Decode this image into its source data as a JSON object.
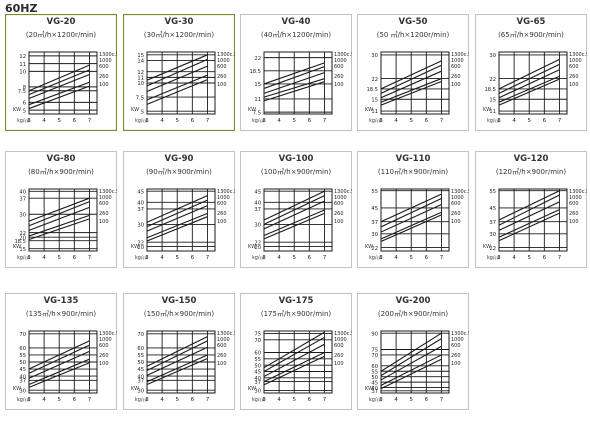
{
  "heading": "60HZ",
  "colors": {
    "panel_border_highlight": "#7a8a2e",
    "panel_border": "#c2c2c2",
    "ink": "#1a1a1a"
  },
  "chart_data": [
    {
      "type": "line",
      "title": "VG-20",
      "subtitle": "(20㎥/h×1200r/min)",
      "xlabel": "kg/㎠",
      "ylabel": "KW",
      "x": [
        3,
        4,
        5,
        6,
        7
      ],
      "xlim": [
        3,
        7.5
      ],
      "yticks": [
        5,
        6,
        7.5,
        8,
        10,
        11,
        12
      ],
      "ylim": [
        4.5,
        12.5
      ],
      "highlight": true,
      "series": [
        {
          "name": "1300c.St",
          "y0": 7.5,
          "y1": 10.8
        },
        {
          "name": "1000",
          "y0": 7.0,
          "y1": 10.2
        },
        {
          "name": "600",
          "y0": 6.5,
          "y1": 9.6
        },
        {
          "name": "260",
          "y0": 5.7,
          "y1": 8.6
        },
        {
          "name": "100",
          "y0": 5.2,
          "y1": 8.1
        }
      ]
    },
    {
      "type": "line",
      "title": "VG-30",
      "subtitle": "(30㎥/h×1200r/min)",
      "xlabel": "kg/㎠",
      "ylabel": "KW",
      "x": [
        3,
        4,
        5,
        6,
        7
      ],
      "xlim": [
        3,
        7.5
      ],
      "yticks": [
        5,
        7.5,
        10,
        11,
        12,
        14,
        15
      ],
      "ylim": [
        4.5,
        15.5
      ],
      "highlight": true,
      "series": [
        {
          "name": "1300c.St",
          "y0": 10.5,
          "y1": 15.0
        },
        {
          "name": "1000",
          "y0": 9.5,
          "y1": 14.2
        },
        {
          "name": "600",
          "y0": 8.5,
          "y1": 13.0
        },
        {
          "name": "260",
          "y0": 7.0,
          "y1": 11.4
        },
        {
          "name": "100",
          "y0": 6.2,
          "y1": 10.6
        }
      ]
    },
    {
      "type": "line",
      "title": "VG-40",
      "subtitle": "(40㎥/h×1200r/min)",
      "xlabel": "kg/㎠",
      "ylabel": "KW",
      "x": [
        3,
        4,
        5,
        6,
        7
      ],
      "xlim": [
        3,
        7.5
      ],
      "yticks": [
        7.5,
        11,
        15,
        18.5,
        22
      ],
      "ylim": [
        7,
        23.5
      ],
      "highlight": false,
      "series": [
        {
          "name": "1300c.St",
          "y0": 15.0,
          "y1": 20.6
        },
        {
          "name": "1000",
          "y0": 13.8,
          "y1": 19.6
        },
        {
          "name": "600",
          "y0": 12.5,
          "y1": 18.0
        },
        {
          "name": "260",
          "y0": 11.5,
          "y1": 16.4
        },
        {
          "name": "100",
          "y0": 10.5,
          "y1": 15.6
        }
      ]
    },
    {
      "type": "line",
      "title": "VG-50",
      "subtitle": "(50 ㎥/h×1200r/min)",
      "xlabel": "kg/㎠",
      "ylabel": "KW",
      "x": [
        3,
        4,
        5,
        6,
        7
      ],
      "xlim": [
        3,
        7.5
      ],
      "yticks": [
        11,
        15,
        18.5,
        22,
        30
      ],
      "ylim": [
        10,
        31
      ],
      "highlight": false,
      "series": [
        {
          "name": "1300c.St",
          "y0": 18.5,
          "y1": 28.0
        },
        {
          "name": "1000",
          "y0": 17.0,
          "y1": 26.5
        },
        {
          "name": "600",
          "y0": 15.5,
          "y1": 24.5
        },
        {
          "name": "260",
          "y0": 14.0,
          "y1": 22.0
        },
        {
          "name": "100",
          "y0": 13.0,
          "y1": 21.0
        }
      ]
    },
    {
      "type": "line",
      "title": "VG-65",
      "subtitle": "(65㎥/h×900r/min)",
      "xlabel": "kg/㎠",
      "ylabel": "KW",
      "x": [
        3,
        4,
        5,
        6,
        7
      ],
      "xlim": [
        3,
        7.5
      ],
      "yticks": [
        11,
        15,
        18.5,
        22,
        30
      ],
      "ylim": [
        10,
        31
      ],
      "highlight": false,
      "series": [
        {
          "name": "1300c.St",
          "y0": 18.5,
          "y1": 28.5
        },
        {
          "name": "1000",
          "y0": 17.0,
          "y1": 26.8
        },
        {
          "name": "600",
          "y0": 15.5,
          "y1": 25.0
        },
        {
          "name": "260",
          "y0": 14.0,
          "y1": 22.8
        },
        {
          "name": "100",
          "y0": 13.0,
          "y1": 21.8
        }
      ]
    },
    {
      "type": "line",
      "title": "VG-80",
      "subtitle": "(80㎥/h×900r/min)",
      "xlabel": "kg/㎠",
      "ylabel": "KW",
      "x": [
        3,
        4,
        5,
        6,
        7
      ],
      "xlim": [
        3,
        7.5
      ],
      "yticks": [
        15,
        18.5,
        20,
        22,
        30,
        37,
        40
      ],
      "ylim": [
        14,
        41
      ],
      "highlight": false,
      "series": [
        {
          "name": "1300c.St",
          "y0": 27.0,
          "y1": 37.0
        },
        {
          "name": "1000",
          "y0": 25.0,
          "y1": 35.5
        },
        {
          "name": "600",
          "y0": 23.0,
          "y1": 33.0
        },
        {
          "name": "260",
          "y0": 20.5,
          "y1": 29.5
        },
        {
          "name": "100",
          "y0": 19.0,
          "y1": 28.0
        }
      ]
    },
    {
      "type": "line",
      "title": "VG-90",
      "subtitle": "(90㎥/h×900r/min)",
      "xlabel": "kg/㎠",
      "ylabel": "KW",
      "x": [
        3,
        4,
        5,
        6,
        7
      ],
      "xlim": [
        3,
        7.5
      ],
      "yticks": [
        20,
        22,
        30,
        37,
        40,
        45
      ],
      "ylim": [
        18,
        46
      ],
      "highlight": false,
      "series": [
        {
          "name": "1300c.St",
          "y0": 31.0,
          "y1": 43.0
        },
        {
          "name": "1000",
          "y0": 29.0,
          "y1": 41.0
        },
        {
          "name": "600",
          "y0": 27.0,
          "y1": 38.5
        },
        {
          "name": "260",
          "y0": 24.0,
          "y1": 35.0
        },
        {
          "name": "100",
          "y0": 22.5,
          "y1": 33.5
        }
      ]
    },
    {
      "type": "line",
      "title": "VG-100",
      "subtitle": "(100㎥/h×900r/min)",
      "xlabel": "kg/㎠",
      "ylabel": "KW",
      "x": [
        3,
        4,
        5,
        6,
        7
      ],
      "xlim": [
        3,
        7.5
      ],
      "yticks": [
        20,
        22,
        30,
        37,
        40,
        45
      ],
      "ylim": [
        18,
        46
      ],
      "highlight": false,
      "series": [
        {
          "name": "1300c.St",
          "y0": 32.0,
          "y1": 45.0
        },
        {
          "name": "1000",
          "y0": 30.0,
          "y1": 43.0
        },
        {
          "name": "600",
          "y0": 28.0,
          "y1": 40.5
        },
        {
          "name": "260",
          "y0": 25.0,
          "y1": 36.5
        },
        {
          "name": "100",
          "y0": 23.5,
          "y1": 35.0
        }
      ]
    },
    {
      "type": "line",
      "title": "VG-110",
      "subtitle": "(110㎥/h×900r/min)",
      "xlabel": "kg/㎠",
      "ylabel": "KW",
      "x": [
        3,
        4,
        5,
        6,
        7
      ],
      "xlim": [
        3,
        7.5
      ],
      "yticks": [
        22,
        30,
        37,
        45,
        55
      ],
      "ylim": [
        20,
        56
      ],
      "highlight": false,
      "series": [
        {
          "name": "1300c.St",
          "y0": 37.0,
          "y1": 53.0
        },
        {
          "name": "1000",
          "y0": 34.0,
          "y1": 50.5
        },
        {
          "name": "600",
          "y0": 31.0,
          "y1": 47.0
        },
        {
          "name": "260",
          "y0": 27.0,
          "y1": 42.5
        },
        {
          "name": "100",
          "y0": 25.5,
          "y1": 41.0
        }
      ]
    },
    {
      "type": "line",
      "title": "VG-120",
      "subtitle": "(120㎥/h×900r/min)",
      "xlabel": "kg/㎠",
      "ylabel": "KW",
      "x": [
        3,
        4,
        5,
        6,
        7
      ],
      "xlim": [
        3,
        7.5
      ],
      "yticks": [
        22,
        30,
        37,
        45,
        55
      ],
      "ylim": [
        20,
        56
      ],
      "highlight": false,
      "series": [
        {
          "name": "1300c.St",
          "y0": 38.0,
          "y1": 55.0
        },
        {
          "name": "1000",
          "y0": 35.0,
          "y1": 52.5
        },
        {
          "name": "600",
          "y0": 32.0,
          "y1": 48.5
        },
        {
          "name": "260",
          "y0": 28.0,
          "y1": 44.0
        },
        {
          "name": "100",
          "y0": 26.0,
          "y1": 42.0
        }
      ]
    },
    {
      "type": "line",
      "title": "VG-135",
      "subtitle": "(135㎥/h×900r/min)",
      "xlabel": "kg/㎠",
      "ylabel": "KW",
      "x": [
        3,
        4,
        5,
        6,
        7
      ],
      "xlim": [
        3,
        7.5
      ],
      "yticks": [
        30,
        37,
        40,
        45,
        50,
        55,
        60,
        70
      ],
      "ylim": [
        28,
        72
      ],
      "highlight": false,
      "series": [
        {
          "name": "1300c.St",
          "y0": 45.0,
          "y1": 65.0
        },
        {
          "name": "1000",
          "y0": 42.0,
          "y1": 62.0
        },
        {
          "name": "600",
          "y0": 38.5,
          "y1": 57.5
        },
        {
          "name": "260",
          "y0": 34.0,
          "y1": 52.0
        },
        {
          "name": "100",
          "y0": 32.0,
          "y1": 49.5
        }
      ]
    },
    {
      "type": "line",
      "title": "VG-150",
      "subtitle": "(150㎥/h×900r/min)",
      "xlabel": "kg/㎠",
      "ylabel": "KW",
      "x": [
        3,
        4,
        5,
        6,
        7
      ],
      "xlim": [
        3,
        7.5
      ],
      "yticks": [
        30,
        37,
        40,
        45,
        50,
        55,
        60,
        70
      ],
      "ylim": [
        28,
        72
      ],
      "highlight": false,
      "series": [
        {
          "name": "1300c.St",
          "y0": 47.0,
          "y1": 68.0
        },
        {
          "name": "1000",
          "y0": 44.0,
          "y1": 65.0
        },
        {
          "name": "600",
          "y0": 40.5,
          "y1": 60.5
        },
        {
          "name": "260",
          "y0": 36.0,
          "y1": 55.0
        },
        {
          "name": "100",
          "y0": 34.0,
          "y1": 52.5
        }
      ]
    },
    {
      "type": "line",
      "title": "VG-175",
      "subtitle": "(175㎥/h×900r/min)",
      "xlabel": "kg/㎠",
      "ylabel": "KW",
      "x": [
        3,
        4,
        5,
        6,
        7
      ],
      "xlim": [
        3,
        7.5
      ],
      "yticks": [
        30,
        37,
        40,
        45,
        50,
        55,
        60,
        70,
        75
      ],
      "ylim": [
        28,
        77
      ],
      "highlight": false,
      "series": [
        {
          "name": "1300c.St",
          "y0": 48.0,
          "y1": 76.0
        },
        {
          "name": "1000",
          "y0": 45.0,
          "y1": 72.0
        },
        {
          "name": "600",
          "y0": 41.0,
          "y1": 66.5
        },
        {
          "name": "260",
          "y0": 37.0,
          "y1": 60.0
        },
        {
          "name": "100",
          "y0": 34.5,
          "y1": 57.0
        }
      ]
    },
    {
      "type": "line",
      "title": "VG-200",
      "subtitle": "(200㎥/h×900r/min)",
      "xlabel": "kg/㎠",
      "ylabel": "KW",
      "x": [
        3,
        4,
        5,
        6,
        7
      ],
      "xlim": [
        3,
        7.5
      ],
      "yticks": [
        37,
        40,
        45,
        50,
        55,
        60,
        70,
        75,
        90
      ],
      "ylim": [
        35,
        92
      ],
      "highlight": false,
      "series": [
        {
          "name": "1300c.St",
          "y0": 55.0,
          "y1": 90.0
        },
        {
          "name": "1000",
          "y0": 51.0,
          "y1": 85.0
        },
        {
          "name": "600",
          "y0": 47.0,
          "y1": 78.0
        },
        {
          "name": "260",
          "y0": 42.0,
          "y1": 70.0
        },
        {
          "name": "100",
          "y0": 39.0,
          "y1": 66.0
        }
      ]
    }
  ]
}
